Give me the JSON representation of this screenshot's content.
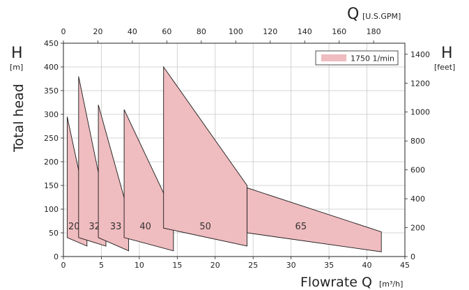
{
  "chart_data": {
    "type": "area",
    "x_bottom": {
      "label_main": "Flowrate Q",
      "label_unit": "[m³/h]",
      "range": [
        0,
        45
      ],
      "ticks": [
        0,
        5,
        10,
        15,
        20,
        25,
        30,
        35,
        40,
        45
      ]
    },
    "x_top": {
      "label_main": "Q",
      "label_unit": "[U.S.GPM]",
      "ticks": [
        0,
        20,
        40,
        60,
        80,
        100,
        120,
        140,
        160,
        180
      ]
    },
    "y_left": {
      "label_rot": "Total head",
      "label_main": "H",
      "label_unit": "[m]",
      "range": [
        0,
        450
      ],
      "ticks": [
        0,
        50,
        100,
        150,
        200,
        250,
        300,
        350,
        400,
        450
      ]
    },
    "y_right": {
      "label_main": "H",
      "label_unit": "[feet]",
      "ticks": [
        0,
        200,
        400,
        600,
        800,
        1000,
        1200,
        1400
      ]
    },
    "grid": true,
    "legend": {
      "label": "1750 1/min",
      "color": "#efbcbf",
      "position": "top-right"
    },
    "fill_color": "#efbcbf",
    "stroke_color": "#1a1a1a",
    "zones": [
      {
        "label": "20",
        "label_at": [
          1.4,
          63
        ],
        "polygon": [
          [
            0.5,
            40
          ],
          [
            0.5,
            295
          ],
          [
            3.1,
            100
          ],
          [
            3.1,
            22
          ]
        ]
      },
      {
        "label": "32",
        "label_at": [
          4.1,
          63
        ],
        "polygon": [
          [
            2.0,
            40
          ],
          [
            2.0,
            380
          ],
          [
            5.6,
            100
          ],
          [
            5.6,
            22
          ]
        ]
      },
      {
        "label": "33",
        "label_at": [
          6.9,
          63
        ],
        "polygon": [
          [
            4.6,
            40
          ],
          [
            4.6,
            320
          ],
          [
            8.6,
            90
          ],
          [
            8.6,
            12
          ]
        ]
      },
      {
        "label": "40",
        "label_at": [
          10.8,
          63
        ],
        "polygon": [
          [
            8.0,
            40
          ],
          [
            8.0,
            310
          ],
          [
            14.5,
            90
          ],
          [
            14.5,
            12
          ]
        ]
      },
      {
        "label": "50",
        "label_at": [
          18.7,
          63
        ],
        "polygon": [
          [
            13.2,
            60
          ],
          [
            13.2,
            400
          ],
          [
            24.2,
            150
          ],
          [
            24.2,
            22
          ]
        ]
      },
      {
        "label": "65",
        "label_at": [
          31.3,
          63
        ],
        "polygon": [
          [
            24.2,
            50
          ],
          [
            24.2,
            145
          ],
          [
            41.9,
            52
          ],
          [
            41.9,
            10
          ]
        ]
      }
    ]
  }
}
